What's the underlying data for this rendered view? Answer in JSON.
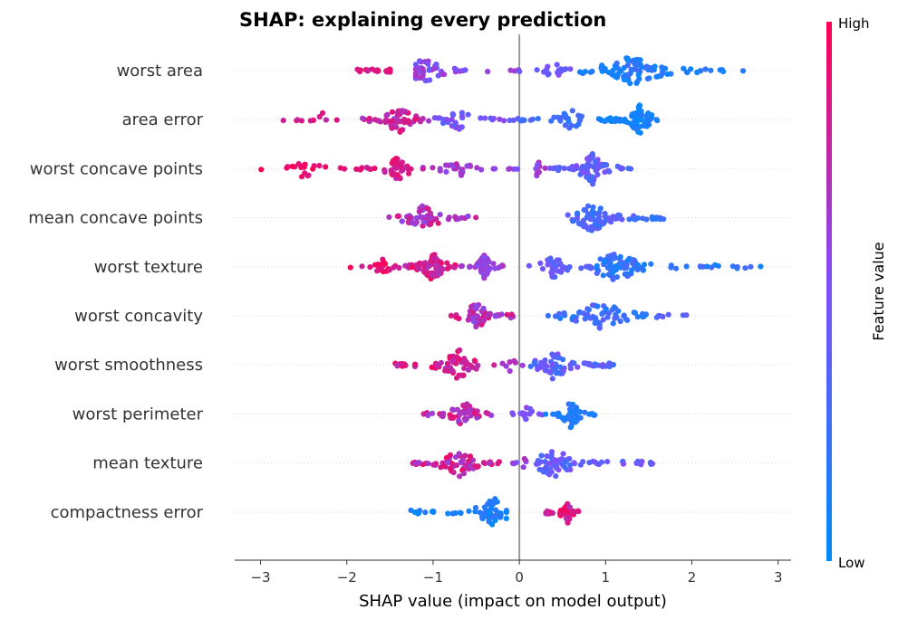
{
  "chart_data": {
    "type": "scatter",
    "subtype": "shap-beeswarm",
    "title": "SHAP: explaining every prediction",
    "xlabel": "SHAP value (impact on model output)",
    "xlim": [
      -3.3,
      3.15
    ],
    "xticks": [
      -3,
      -2,
      -1,
      0,
      1,
      2,
      3
    ],
    "xtick_labels": [
      "−3",
      "−2",
      "−1",
      "0",
      "1",
      "2",
      "3"
    ],
    "zero_line": 0,
    "colorbar": {
      "title": "Feature value",
      "high_label": "High",
      "low_label": "Low",
      "high_color": "#ff0052",
      "low_color": "#008bfb"
    },
    "features": [
      {
        "name": "worst area",
        "groups": [
          {
            "min": -1.9,
            "max": -1.5,
            "center": -1.3,
            "peak": -1.3,
            "count": 40,
            "vmin": 0.75,
            "vmax": 0.95
          },
          {
            "min": -1.2,
            "max": 0.0,
            "center": -0.6,
            "peak": -1.1,
            "count": 45,
            "vmin": 0.4,
            "vmax": 0.7
          },
          {
            "min": 0.0,
            "max": 0.7,
            "center": 0.35,
            "peak": 0.4,
            "count": 18,
            "vmin": 0.35,
            "vmax": 0.55
          },
          {
            "min": 0.7,
            "max": 2.65,
            "center": 1.3,
            "peak": 1.3,
            "count": 95,
            "vmin": 0.0,
            "vmax": 0.25
          }
        ]
      },
      {
        "name": "area error",
        "groups": [
          {
            "min": -2.8,
            "max": -1.9,
            "center": -2.3,
            "peak": -2.3,
            "count": 10,
            "vmin": 0.7,
            "vmax": 0.95
          },
          {
            "min": -1.9,
            "max": -1.0,
            "center": -1.4,
            "peak": -1.4,
            "count": 55,
            "vmin": 0.6,
            "vmax": 0.9
          },
          {
            "min": -1.0,
            "max": 0.0,
            "center": -0.6,
            "peak": -0.7,
            "count": 35,
            "vmin": 0.35,
            "vmax": 0.6
          },
          {
            "min": 0.0,
            "max": 0.9,
            "center": 0.55,
            "peak": 0.6,
            "count": 30,
            "vmin": 0.15,
            "vmax": 0.35
          },
          {
            "min": 0.9,
            "max": 1.6,
            "center": 1.4,
            "peak": 1.4,
            "count": 80,
            "vmin": 0.0,
            "vmax": 0.15
          }
        ]
      },
      {
        "name": "worst concave points",
        "groups": [
          {
            "min": -3.05,
            "max": -2.0,
            "center": -2.5,
            "peak": -2.5,
            "count": 20,
            "vmin": 0.85,
            "vmax": 1.0
          },
          {
            "min": -2.0,
            "max": -1.2,
            "center": -1.4,
            "peak": -1.4,
            "count": 45,
            "vmin": 0.75,
            "vmax": 0.95
          },
          {
            "min": -1.2,
            "max": -0.3,
            "center": -0.7,
            "peak": -0.7,
            "count": 28,
            "vmin": 0.55,
            "vmax": 0.8
          },
          {
            "min": -0.3,
            "max": 0.35,
            "center": 0.0,
            "peak": 0.2,
            "count": 14,
            "vmin": 0.5,
            "vmax": 0.7
          },
          {
            "min": 0.35,
            "max": 1.3,
            "center": 0.85,
            "peak": 0.85,
            "count": 75,
            "vmin": 0.25,
            "vmax": 0.55
          }
        ]
      },
      {
        "name": "mean concave points",
        "groups": [
          {
            "min": -1.6,
            "max": -0.5,
            "center": -1.1,
            "peak": -1.1,
            "count": 55,
            "vmin": 0.55,
            "vmax": 0.9
          },
          {
            "min": 0.55,
            "max": 1.7,
            "center": 0.85,
            "peak": 0.85,
            "count": 80,
            "vmin": 0.15,
            "vmax": 0.45
          }
        ]
      },
      {
        "name": "worst texture",
        "groups": [
          {
            "min": -2.0,
            "max": -1.4,
            "center": -1.6,
            "peak": -1.6,
            "count": 20,
            "vmin": 0.8,
            "vmax": 1.0
          },
          {
            "min": -1.4,
            "max": -0.7,
            "center": -1.0,
            "peak": -1.0,
            "count": 75,
            "vmin": 0.7,
            "vmax": 0.95
          },
          {
            "min": -0.7,
            "max": -0.15,
            "center": -0.4,
            "peak": -0.4,
            "count": 45,
            "vmin": 0.5,
            "vmax": 0.7
          },
          {
            "min": 0.1,
            "max": 0.9,
            "center": 0.5,
            "peak": 0.4,
            "count": 40,
            "vmin": 0.3,
            "vmax": 0.5
          },
          {
            "min": 0.9,
            "max": 2.85,
            "center": 1.2,
            "peak": 1.1,
            "count": 85,
            "vmin": 0.05,
            "vmax": 0.35
          }
        ]
      },
      {
        "name": "worst concavity",
        "groups": [
          {
            "min": -0.8,
            "max": -0.05,
            "center": -0.5,
            "peak": -0.5,
            "count": 55,
            "vmin": 0.55,
            "vmax": 0.9
          },
          {
            "min": 0.3,
            "max": 2.0,
            "center": 1.0,
            "peak": 0.95,
            "count": 70,
            "vmin": 0.1,
            "vmax": 0.4
          }
        ]
      },
      {
        "name": "worst smoothness",
        "groups": [
          {
            "min": -1.5,
            "max": -0.45,
            "center": -0.7,
            "peak": -0.7,
            "count": 60,
            "vmin": 0.7,
            "vmax": 0.95
          },
          {
            "min": -0.3,
            "max": 0.1,
            "center": -0.1,
            "peak": -0.1,
            "count": 8,
            "vmin": 0.6,
            "vmax": 0.8
          },
          {
            "min": 0.1,
            "max": 1.1,
            "center": 0.4,
            "peak": 0.4,
            "count": 70,
            "vmin": 0.2,
            "vmax": 0.55
          }
        ]
      },
      {
        "name": "worst perimeter",
        "groups": [
          {
            "min": -1.15,
            "max": -0.3,
            "center": -0.65,
            "peak": -0.65,
            "count": 50,
            "vmin": 0.6,
            "vmax": 0.9
          },
          {
            "min": -0.1,
            "max": 0.3,
            "center": 0.1,
            "peak": 0.1,
            "count": 14,
            "vmin": 0.45,
            "vmax": 0.6
          },
          {
            "min": 0.3,
            "max": 0.9,
            "center": 0.6,
            "peak": 0.6,
            "count": 55,
            "vmin": 0.05,
            "vmax": 0.25
          }
        ]
      },
      {
        "name": "mean texture",
        "groups": [
          {
            "min": -1.25,
            "max": -0.2,
            "center": -0.7,
            "peak": -0.7,
            "count": 65,
            "vmin": 0.6,
            "vmax": 0.95
          },
          {
            "min": -0.1,
            "max": 0.2,
            "center": 0.05,
            "peak": 0.05,
            "count": 8,
            "vmin": 0.5,
            "vmax": 0.7
          },
          {
            "min": 0.2,
            "max": 1.6,
            "center": 0.45,
            "peak": 0.4,
            "count": 70,
            "vmin": 0.25,
            "vmax": 0.55
          }
        ]
      },
      {
        "name": "compactness error",
        "groups": [
          {
            "min": -1.3,
            "max": -0.15,
            "center": -0.45,
            "peak": -0.3,
            "count": 55,
            "vmin": 0.0,
            "vmax": 0.2
          },
          {
            "min": 0.3,
            "max": 0.7,
            "center": 0.55,
            "peak": 0.55,
            "count": 50,
            "vmin": 0.7,
            "vmax": 1.0
          }
        ]
      }
    ]
  }
}
